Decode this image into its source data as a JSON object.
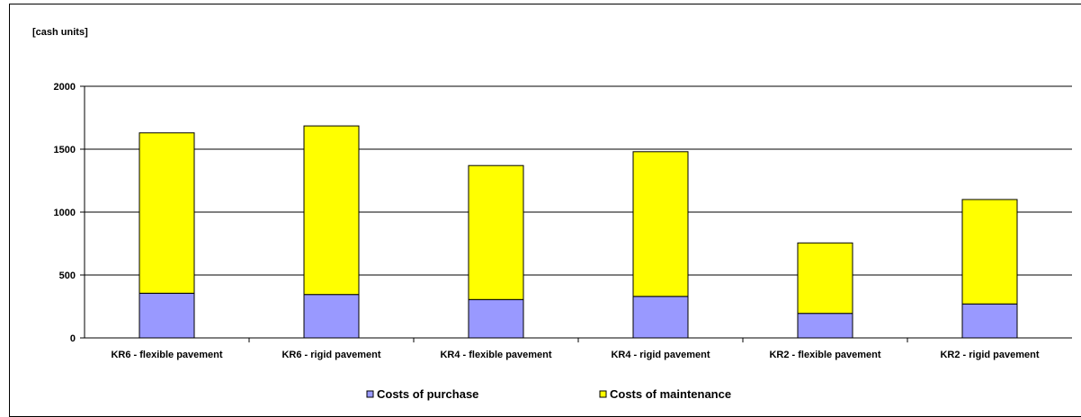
{
  "chart_data": {
    "type": "bar",
    "stacked": true,
    "ylabel": "[cash units]",
    "ylim": [
      0,
      2000
    ],
    "yticks": [
      0,
      500,
      1000,
      1500,
      2000
    ],
    "grid": true,
    "legend_position": "bottom",
    "categories": [
      "KR6 - flexible pavement",
      "KR6 - rigid pavement",
      "KR4 - flexible pavement",
      "KR4 - rigid pavement",
      "KR2 - flexible pavement",
      "KR2 - rigid pavement"
    ],
    "series": [
      {
        "name": "Costs of purchase",
        "color": "#9999ff",
        "values": [
          355,
          345,
          305,
          330,
          195,
          270
        ]
      },
      {
        "name": "Costs of maintenance",
        "color": "#ffff00",
        "values": [
          1275,
          1340,
          1065,
          1150,
          560,
          830
        ]
      }
    ]
  }
}
